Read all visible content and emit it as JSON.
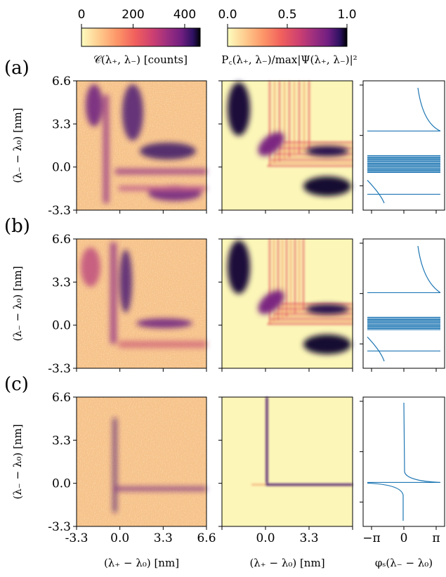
{
  "chart_data": [
    {
      "type": "heatmap",
      "description_role": "colorbar",
      "label": "𝒞(λ₊, λ₋) [counts]",
      "ticks": [
        "0",
        "200",
        "400"
      ],
      "range": [
        0,
        460
      ],
      "colormap": "magma_r"
    },
    {
      "type": "heatmap",
      "description_role": "colorbar",
      "label": "P꜀(λ₊, λ₋)/max|Ψ(λ₊, λ₋)|²",
      "ticks": [
        "0.0",
        "0.5",
        "1.0"
      ],
      "range": [
        0,
        1
      ],
      "colormap": "magma_r"
    }
  ],
  "panels": [
    {
      "label": "(a)",
      "wide": true
    },
    {
      "label": "(b)",
      "wide": false
    },
    {
      "label": "(c)",
      "wide": null
    }
  ],
  "axes": {
    "x_ticks": [
      "-3.3",
      "0.0",
      "3.3",
      "6.6"
    ],
    "x_ticks_mid": [
      "0.0",
      "3.3"
    ],
    "y_ticks": [
      "6.6",
      "3.3",
      "0.0",
      "-3.3"
    ],
    "phase_ticks": [
      "−π",
      "0",
      "π"
    ],
    "xlabel": "(λ₊ − λ₀) [nm]",
    "ylabel": "(λ₋ − λ₀) [nm]",
    "phase_xlabel": "φₛ(λ₋ − λ₀)"
  },
  "colors": {
    "line": "#1f77b4"
  }
}
